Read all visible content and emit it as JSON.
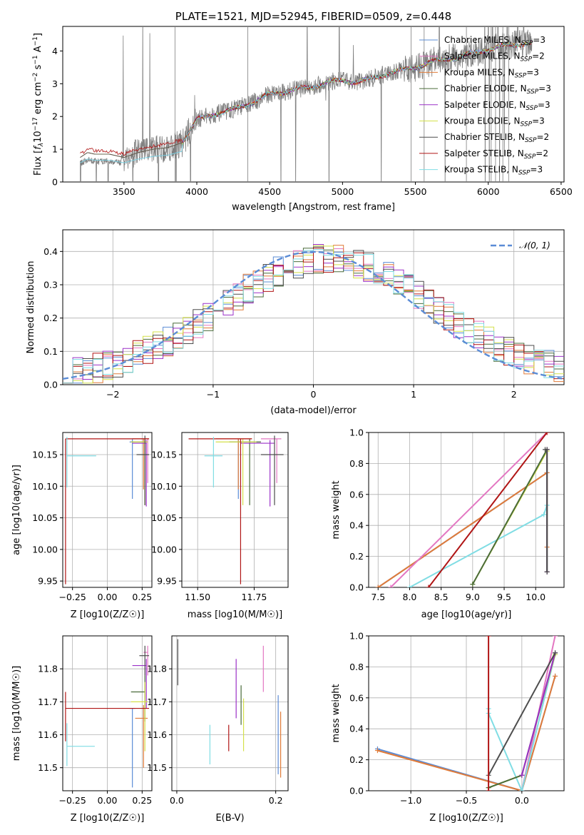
{
  "chart_data": [
    {
      "id": "spectrum",
      "type": "line",
      "title": "PLATE=1521, MJD=52945, FIBERID=0509, z=0.448",
      "xlabel": "wavelength [Angstrom, rest frame]",
      "ylabel": "Flux [f_λ 10^-17 erg cm^-2 s^-1 A^-1]",
      "xlim": [
        3080,
        6520
      ],
      "ylim": [
        0,
        4.75
      ],
      "xticks": [
        3500,
        4000,
        4500,
        5000,
        5500,
        6000,
        6500
      ],
      "yticks": [
        0,
        1,
        2,
        3,
        4
      ],
      "grid": false,
      "legend_position": "right",
      "data_color": "#7f7f7f",
      "model_anchor_points": {
        "x": [
          3200,
          3250,
          3300,
          3400,
          3500,
          3600,
          3700,
          3800,
          3900,
          4000,
          4100,
          4200,
          4300,
          4400,
          4500,
          4600,
          4700,
          4800,
          4900,
          5000,
          5100,
          5200,
          5300,
          5400,
          5500,
          5600,
          5700,
          5800,
          5900,
          6000,
          6100,
          6200,
          6300
        ],
        "y": [
          0.75,
          0.9,
          0.85,
          0.85,
          0.75,
          0.9,
          1.0,
          1.05,
          1.2,
          1.9,
          2.05,
          2.15,
          2.3,
          2.45,
          2.7,
          2.75,
          2.85,
          2.9,
          3.05,
          3.1,
          3.05,
          3.15,
          3.3,
          3.4,
          3.5,
          3.65,
          3.75,
          3.8,
          3.95,
          4.05,
          4.15,
          4.2,
          4.25
        ]
      },
      "series": [
        {
          "name": "Chabrier MILES, N_SSP=3",
          "label": "Chabrier MILES, N",
          "nssp": "=3",
          "color": "#5b8cd6"
        },
        {
          "name": "Salpeter MILES, N_SSP=2",
          "label": "Salpeter MILES, N",
          "nssp": "=2",
          "color": "#e377c2"
        },
        {
          "name": "Kroupa MILES, N_SSP=3",
          "label": "Kroupa MILES, N",
          "nssp": "=3",
          "color": "#e07b39"
        },
        {
          "name": "Chabrier ELODIE, N_SSP=3",
          "label": "Chabrier ELODIE, N",
          "nssp": "=3",
          "color": "#4a6b3a"
        },
        {
          "name": "Salpeter ELODIE, N_SSP=3",
          "label": "Salpeter ELODIE, N",
          "nssp": "=3",
          "color": "#9b30c8"
        },
        {
          "name": "Kroupa ELODIE, N_SSP=3",
          "label": "Kroupa ELODIE, N",
          "nssp": "=3",
          "color": "#d4e04a"
        },
        {
          "name": "Chabrier STELIB, N_SSP=2",
          "label": "Chabrier STELIB, N",
          "nssp": "=2",
          "color": "#4d4d4d"
        },
        {
          "name": "Salpeter STELIB, N_SSP=2",
          "label": "Salpeter STELIB, N",
          "nssp": "=2",
          "color": "#b01515"
        },
        {
          "name": "Kroupa STELIB, N_SSP=3",
          "label": "Kroupa STELIB, N",
          "nssp": "=3",
          "color": "#80dde4"
        }
      ]
    },
    {
      "id": "residuals",
      "type": "line",
      "xlabel": "(data-model)/error",
      "ylabel": "Normed distribution",
      "xlim": [
        -2.5,
        2.5
      ],
      "ylim": [
        0,
        0.465
      ],
      "xticks": [
        -2,
        -1,
        0,
        1,
        2
      ],
      "xtick_labels": [
        "−2",
        "−1",
        "0",
        "1",
        "2"
      ],
      "yticks": [
        0.0,
        0.1,
        0.2,
        0.3,
        0.4
      ],
      "ytick_labels": [
        "0.0",
        "0.1",
        "0.2",
        "0.3",
        "0.4"
      ],
      "grid": true,
      "legend": "𝒩(0, 1)",
      "legend_position": "top-right",
      "gaussian": {
        "mean": 0,
        "sigma": 1,
        "color": "#5b8cd6"
      },
      "bin_width": 0.1
    },
    {
      "id": "age_vs_Z",
      "type": "scatter",
      "xlabel": "Z [log10(Z/Z☉)]",
      "ylabel": "age [log10(age/yr)]",
      "xlim": [
        -0.32,
        0.32
      ],
      "ylim": [
        9.94,
        10.185
      ],
      "xticks": [
        -0.25,
        0.0,
        0.25
      ],
      "xtick_labels": [
        "−0.25",
        "0.00",
        "0.25"
      ],
      "yticks": [
        9.95,
        10.0,
        10.05,
        10.1,
        10.15
      ],
      "ytick_labels": [
        "9.95",
        "10.00",
        "10.05",
        "10.10",
        "10.15"
      ],
      "grid": true,
      "points": [
        {
          "color": "#5b8cd6",
          "x": 0.18,
          "xerr": [
            0.02,
            0.02
          ],
          "y": 10.17,
          "yerr": [
            0.09,
            0.005
          ]
        },
        {
          "color": "#e377c2",
          "x": 0.29,
          "xerr": [
            0.05,
            0.0
          ],
          "y": 10.175,
          "yerr": [
            0.07,
            0.0
          ]
        },
        {
          "color": "#e07b39",
          "x": 0.26,
          "xerr": [
            0.08,
            0.04
          ],
          "y": 10.175,
          "yerr": [
            0.08,
            0.0
          ]
        },
        {
          "color": "#4a6b3a",
          "x": 0.27,
          "xerr": [
            0.1,
            0.0
          ],
          "y": 10.17,
          "yerr": [
            0.1,
            0.005
          ]
        },
        {
          "color": "#9b30c8",
          "x": 0.28,
          "xerr": [
            0.1,
            0.0
          ],
          "y": 10.168,
          "yerr": [
            0.1,
            0.005
          ]
        },
        {
          "color": "#d4e04a",
          "x": 0.27,
          "xerr": [
            0.1,
            0.02
          ],
          "y": 10.17,
          "yerr": [
            0.1,
            0.005
          ]
        },
        {
          "color": "#4d4d4d",
          "x": 0.27,
          "xerr": [
            0.06,
            0.03
          ],
          "y": 10.15,
          "yerr": [
            0.08,
            0.03
          ]
        },
        {
          "color": "#b01515",
          "x": -0.3,
          "xerr": [
            0.0,
            0.6
          ],
          "y": 10.175,
          "yerr": [
            0.23,
            0.0
          ]
        },
        {
          "color": "#80dde4",
          "x": -0.29,
          "xerr": [
            0.0,
            0.21
          ],
          "y": 10.148,
          "yerr": [
            0.05,
            0.03
          ]
        }
      ]
    },
    {
      "id": "age_vs_mass",
      "type": "scatter",
      "xlabel": "mass [log10(M/M☉)]",
      "xlim": [
        11.43,
        11.9
      ],
      "ylim": [
        9.94,
        10.185
      ],
      "xticks": [
        11.5,
        11.75
      ],
      "xtick_labels": [
        "11.50",
        "11.75"
      ],
      "yticks": [
        9.95,
        10.0,
        10.05,
        10.1,
        10.15
      ],
      "ytick_labels": [
        "9.95",
        "10.00",
        "10.05",
        "10.10",
        "10.15"
      ],
      "grid": true,
      "points": [
        {
          "color": "#5b8cd6",
          "x": 11.68,
          "xerr": [
            0.04,
            0.04
          ],
          "y": 10.17,
          "yerr": [
            0.09,
            0.005
          ]
        },
        {
          "color": "#e377c2",
          "x": 11.85,
          "xerr": [
            0.07,
            0.02
          ],
          "y": 10.175,
          "yerr": [
            0.07,
            0.0
          ]
        },
        {
          "color": "#e07b39",
          "x": 11.68,
          "xerr": [
            0.1,
            0.06
          ],
          "y": 10.175,
          "yerr": [
            0.08,
            0.0
          ]
        },
        {
          "color": "#4a6b3a",
          "x": 11.73,
          "xerr": [
            0.09,
            0.05
          ],
          "y": 10.17,
          "yerr": [
            0.1,
            0.005
          ]
        },
        {
          "color": "#9b30c8",
          "x": 11.82,
          "xerr": [
            0.13,
            0.02
          ],
          "y": 10.168,
          "yerr": [
            0.1,
            0.005
          ]
        },
        {
          "color": "#d4e04a",
          "x": 11.7,
          "xerr": [
            0.12,
            0.06
          ],
          "y": 10.17,
          "yerr": [
            0.1,
            0.005
          ]
        },
        {
          "color": "#4d4d4d",
          "x": 11.84,
          "xerr": [
            0.06,
            0.04
          ],
          "y": 10.15,
          "yerr": [
            0.08,
            0.03
          ]
        },
        {
          "color": "#b01515",
          "x": 11.69,
          "xerr": [
            0.23,
            0.05
          ],
          "y": 10.175,
          "yerr": [
            0.23,
            0.0
          ]
        },
        {
          "color": "#80dde4",
          "x": 11.57,
          "xerr": [
            0.04,
            0.04
          ],
          "y": 10.148,
          "yerr": [
            0.05,
            0.03
          ]
        }
      ]
    },
    {
      "id": "mass_weight_vs_age",
      "type": "line",
      "xlabel": "age [log10(age/yr)]",
      "ylabel": "mass weight",
      "xlim": [
        7.35,
        10.45
      ],
      "ylim": [
        0,
        1.0
      ],
      "xticks": [
        7.5,
        8.0,
        8.5,
        9.0,
        9.5,
        10.0
      ],
      "xtick_labels": [
        "7.5",
        "8.0",
        "8.5",
        "9.0",
        "9.5",
        "10.0"
      ],
      "yticks": [
        0.0,
        0.2,
        0.4,
        0.6,
        0.8,
        1.0
      ],
      "ytick_labels": [
        "0.0",
        "0.2",
        "0.4",
        "0.6",
        "0.8",
        "1.0"
      ],
      "grid": true,
      "series": [
        {
          "color": "#5b8cd6",
          "x": [
            7.5,
            10.18
          ],
          "y": [
            0.0,
            0.74
          ]
        },
        {
          "color": "#e07b39",
          "x": [
            7.5,
            10.18,
            10.18
          ],
          "y": [
            0.0,
            0.74,
            0.26
          ]
        },
        {
          "color": "#e377c2",
          "x": [
            7.7,
            10.18
          ],
          "y": [
            0.0,
            1.0
          ]
        },
        {
          "color": "#80dde4",
          "x": [
            8.0,
            10.13,
            10.18,
            10.18
          ],
          "y": [
            0.0,
            0.47,
            0.53,
            0.1
          ]
        },
        {
          "color": "#d4e04a",
          "x": [
            9.0,
            10.18,
            10.18
          ],
          "y": [
            0.02,
            0.88,
            0.1
          ]
        },
        {
          "color": "#4a6b3a",
          "x": [
            9.0,
            10.18,
            10.18
          ],
          "y": [
            0.02,
            0.89,
            0.1
          ]
        },
        {
          "color": "#9b30c8",
          "x": [
            10.18,
            10.18
          ],
          "y": [
            0.1,
            0.89
          ]
        },
        {
          "color": "#4d4d4d",
          "x": [
            10.15,
            10.18,
            10.18
          ],
          "y": [
            0.89,
            0.89,
            0.1
          ]
        },
        {
          "color": "#b01515",
          "x": [
            8.3,
            10.18
          ],
          "y": [
            0.0,
            1.0
          ]
        }
      ]
    },
    {
      "id": "mass_vs_Z",
      "type": "scatter",
      "xlabel": "Z [log10(Z/Z☉)]",
      "ylabel": "mass [log10(M/M☉)]",
      "xlim": [
        -0.32,
        0.32
      ],
      "ylim": [
        11.43,
        11.9
      ],
      "xticks": [
        -0.25,
        0.0,
        0.25
      ],
      "xtick_labels": [
        "−0.25",
        "0.00",
        "0.25"
      ],
      "yticks": [
        11.5,
        11.6,
        11.7,
        11.8
      ],
      "ytick_labels": [
        "11.5",
        "11.6",
        "11.7",
        "11.8"
      ],
      "grid": true,
      "points": [
        {
          "color": "#5b8cd6",
          "x": 0.18,
          "xerr": [
            0.02,
            0.02
          ],
          "y": 11.68,
          "yerr": [
            0.24,
            0.0
          ]
        },
        {
          "color": "#e377c2",
          "x": 0.29,
          "xerr": [
            0.03,
            0.0
          ],
          "y": 11.85,
          "yerr": [
            0.07,
            0.02
          ]
        },
        {
          "color": "#e07b39",
          "x": 0.26,
          "xerr": [
            0.06,
            0.03
          ],
          "y": 11.65,
          "yerr": [
            0.15,
            0.04
          ]
        },
        {
          "color": "#4a6b3a",
          "x": 0.27,
          "xerr": [
            0.1,
            0.0
          ],
          "y": 11.73,
          "yerr": [
            0.09,
            0.05
          ]
        },
        {
          "color": "#9b30c8",
          "x": 0.28,
          "xerr": [
            0.1,
            0.0
          ],
          "y": 11.81,
          "yerr": [
            0.13,
            0.02
          ]
        },
        {
          "color": "#d4e04a",
          "x": 0.27,
          "xerr": [
            0.1,
            0.02
          ],
          "y": 11.7,
          "yerr": [
            0.15,
            0.06
          ]
        },
        {
          "color": "#4d4d4d",
          "x": 0.27,
          "xerr": [
            0.04,
            0.03
          ],
          "y": 11.84,
          "yerr": [
            0.06,
            0.03
          ]
        },
        {
          "color": "#b01515",
          "x": -0.3,
          "xerr": [
            0.0,
            0.6
          ],
          "y": 11.68,
          "yerr": [
            0.1,
            0.05
          ]
        },
        {
          "color": "#80dde4",
          "x": -0.29,
          "xerr": [
            0.0,
            0.2
          ],
          "y": 11.565,
          "yerr": [
            0.06,
            0.07
          ]
        }
      ]
    },
    {
      "id": "mass_vs_ebv",
      "type": "scatter",
      "xlabel": "E(B-V)",
      "xlim": [
        -0.01,
        0.225
      ],
      "ylim": [
        11.43,
        11.9
      ],
      "xticks": [
        0.0,
        0.2
      ],
      "xtick_labels": [
        "0.0",
        "0.2"
      ],
      "yticks": [
        11.5,
        11.6,
        11.7,
        11.8
      ],
      "ytick_labels": [
        "11.5",
        "11.6",
        "11.7",
        "11.8"
      ],
      "grid": true,
      "points": [
        {
          "color": "#5b8cd6",
          "x": 0.205,
          "y": 11.6,
          "yerr": [
            0.12,
            0.12
          ]
        },
        {
          "color": "#e377c2",
          "x": 0.175,
          "y": 11.8,
          "yerr": [
            0.07,
            0.07
          ]
        },
        {
          "color": "#e07b39",
          "x": 0.21,
          "y": 11.57,
          "yerr": [
            0.1,
            0.1
          ]
        },
        {
          "color": "#4a6b3a",
          "x": 0.13,
          "y": 11.69,
          "yerr": [
            0.06,
            0.06
          ]
        },
        {
          "color": "#9b30c8",
          "x": 0.12,
          "y": 11.74,
          "yerr": [
            0.09,
            0.09
          ]
        },
        {
          "color": "#d4e04a",
          "x": 0.135,
          "y": 11.63,
          "yerr": [
            0.08,
            0.08
          ]
        },
        {
          "color": "#4d4d4d",
          "x": 0.002,
          "y": 11.82,
          "yerr": [
            0.07,
            0.07
          ]
        },
        {
          "color": "#b01515",
          "x": 0.105,
          "y": 11.59,
          "yerr": [
            0.04,
            0.04
          ]
        },
        {
          "color": "#80dde4",
          "x": 0.067,
          "y": 11.57,
          "yerr": [
            0.06,
            0.06
          ]
        }
      ]
    },
    {
      "id": "mass_weight_vs_Z",
      "type": "line",
      "xlabel": "Z [log10(Z/Z☉)]",
      "ylabel": "mass weight",
      "xlim": [
        -1.38,
        0.38
      ],
      "ylim": [
        0,
        1.0
      ],
      "xticks": [
        -1.0,
        -0.5,
        0.0
      ],
      "xtick_labels": [
        "−1.0",
        "−0.5",
        "0.0"
      ],
      "yticks": [
        0.0,
        0.2,
        0.4,
        0.6,
        0.8,
        1.0
      ],
      "ytick_labels": [
        "0.0",
        "0.2",
        "0.4",
        "0.6",
        "0.8",
        "1.0"
      ],
      "grid": true,
      "series": [
        {
          "color": "#5b8cd6",
          "x": [
            -1.3,
            0.0,
            0.3
          ],
          "y": [
            0.27,
            0.0,
            0.74
          ]
        },
        {
          "color": "#e07b39",
          "x": [
            -1.3,
            0.0,
            0.3
          ],
          "y": [
            0.26,
            0.0,
            0.74
          ]
        },
        {
          "color": "#e377c2",
          "x": [
            0.0,
            0.3
          ],
          "y": [
            0.0,
            1.0
          ]
        },
        {
          "color": "#80dde4",
          "x": [
            -0.3,
            -0.3,
            0.0,
            0.3
          ],
          "y": [
            0.53,
            0.5,
            0.0,
            0.88
          ]
        },
        {
          "color": "#d4e04a",
          "x": [
            -0.3,
            0.0,
            0.3
          ],
          "y": [
            0.02,
            0.1,
            0.88
          ]
        },
        {
          "color": "#4a6b3a",
          "x": [
            -0.3,
            0.0,
            0.3
          ],
          "y": [
            0.02,
            0.1,
            0.89
          ]
        },
        {
          "color": "#9b30c8",
          "x": [
            0.0,
            0.3
          ],
          "y": [
            0.1,
            0.89
          ]
        },
        {
          "color": "#4d4d4d",
          "x": [
            -0.3,
            0.3
          ],
          "y": [
            0.1,
            0.89
          ]
        },
        {
          "color": "#b01515",
          "x": [
            -0.3,
            -0.3
          ],
          "y": [
            0.0,
            1.0
          ]
        }
      ]
    }
  ]
}
